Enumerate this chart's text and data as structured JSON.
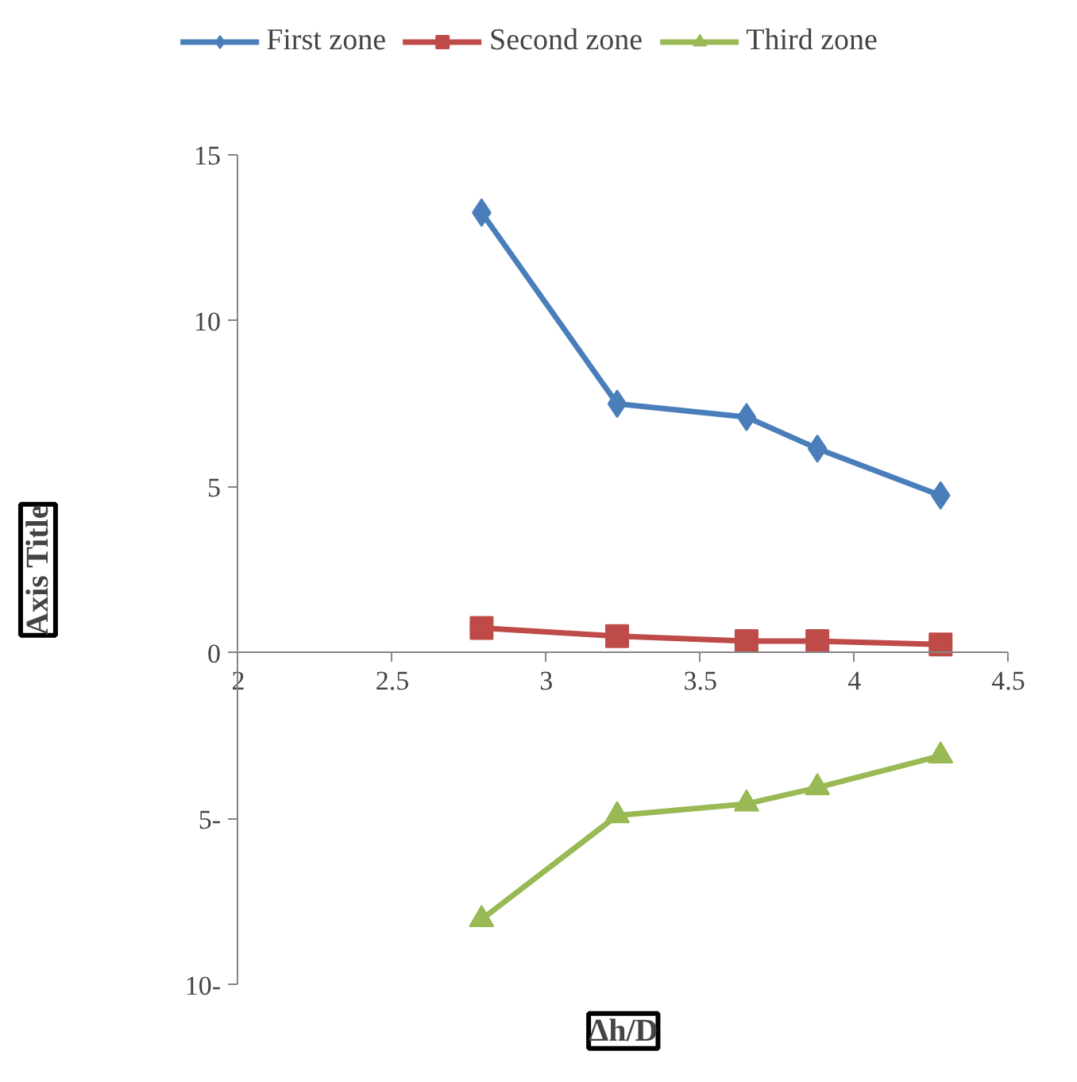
{
  "chart_data": {
    "type": "line",
    "xlabel": "Δh/D",
    "ylabel": "Axis Title",
    "x": [
      2.79,
      3.23,
      3.65,
      3.88,
      4.28
    ],
    "series": [
      {
        "name": "First zone",
        "color": "#4a7ebb",
        "marker": "diamond",
        "values": [
          13.26,
          7.5,
          7.1,
          6.15,
          4.74
        ]
      },
      {
        "name": "Second zone",
        "color": "#be4b48",
        "marker": "square",
        "values": [
          0.75,
          0.5,
          0.35,
          0.35,
          0.25
        ]
      },
      {
        "name": "Third zone",
        "color": "#98b954",
        "marker": "triangle",
        "values": [
          -8.03,
          -4.9,
          -4.55,
          -4.06,
          -3.1
        ]
      }
    ],
    "xlim": [
      2,
      4.5
    ],
    "ylim": [
      -10,
      15
    ],
    "xticks": [
      2,
      2.5,
      3,
      3.5,
      4,
      4.5
    ],
    "yticks": [
      15,
      10,
      5,
      0,
      {
        "value": -5,
        "label": "5-"
      },
      {
        "value": -10,
        "label": "10-"
      }
    ],
    "grid": false,
    "legend": "top",
    "line_style": "solid"
  }
}
